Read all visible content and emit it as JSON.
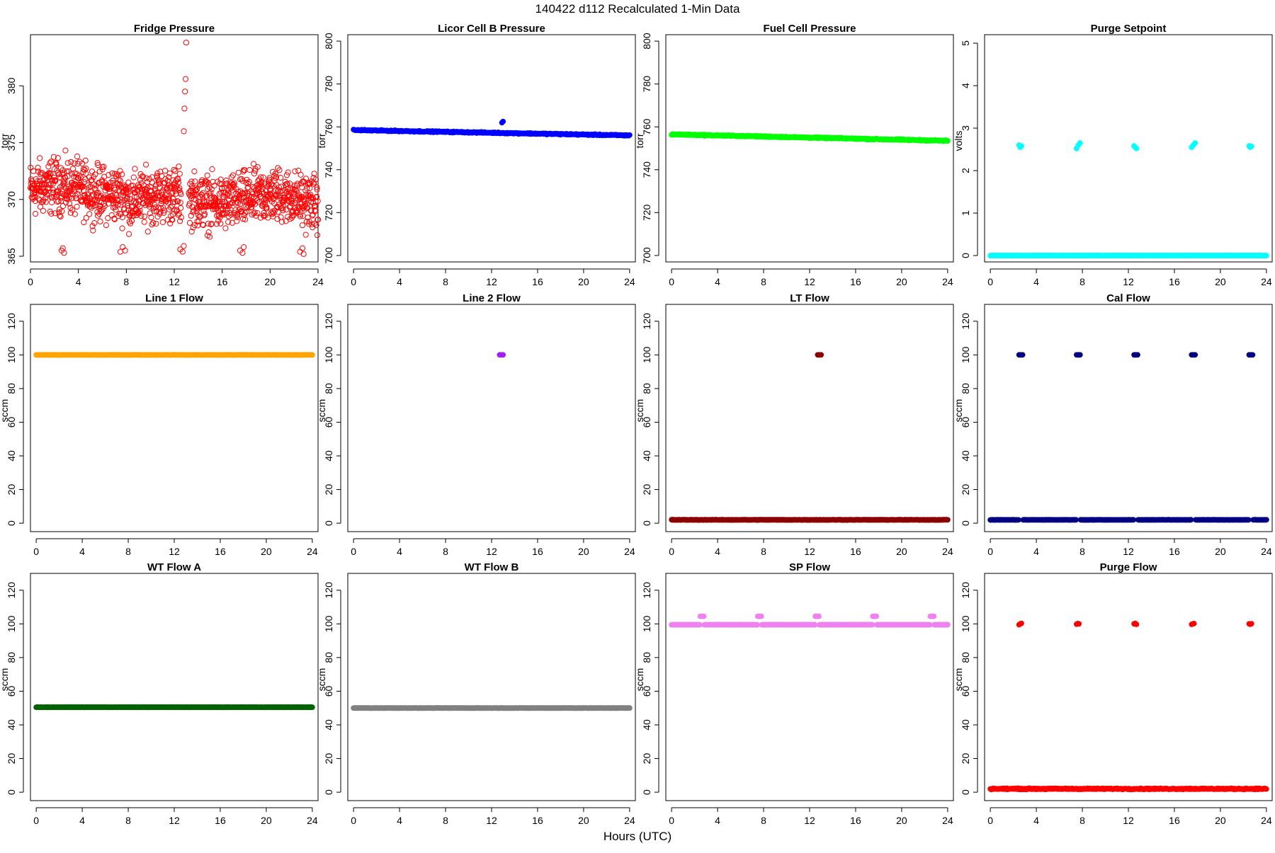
{
  "figure_title": "140422   d112   Recalculated 1-Min Data",
  "x_axis_label": "Hours (UTC)",
  "chart_data": [
    {
      "type": "scatter",
      "title": "Fridge Pressure",
      "ylabel": "torr",
      "xlim": [
        0,
        24
      ],
      "ylim": [
        364.5,
        384.5
      ],
      "xticks": [
        0,
        4,
        8,
        12,
        16,
        20,
        24
      ],
      "yticks": [
        365,
        370,
        375,
        380
      ],
      "color": "#ff0000",
      "marker": "open",
      "base": {
        "from": 0,
        "to": 24,
        "center": 370.8,
        "spread": 1.6,
        "gap": [
          12.6,
          13.2
        ]
      },
      "extra": [
        {
          "x": [
            2.6,
            2.7,
            2.8
          ],
          "y": [
            365.5,
            365.7,
            365.3
          ]
        },
        {
          "x": [
            7.5,
            7.7,
            7.9
          ],
          "y": [
            365.4,
            365.8,
            365.5
          ]
        },
        {
          "x": [
            12.5,
            12.7,
            12.8
          ],
          "y": [
            365.6,
            365.4,
            365.9
          ]
        },
        {
          "x": [
            17.5,
            17.7,
            17.8
          ],
          "y": [
            365.5,
            365.3,
            365.8
          ]
        },
        {
          "x": [
            22.5,
            22.7,
            22.8
          ],
          "y": [
            365.4,
            365.7,
            365.2
          ]
        },
        {
          "x": [
            12.8,
            12.85,
            12.9,
            12.95,
            13.0
          ],
          "y": [
            376,
            378,
            379.5,
            380.6,
            383.8
          ]
        }
      ]
    },
    {
      "type": "scatter",
      "title": "Licor Cell B Pressure",
      "ylabel": "torr",
      "xlim": [
        -0.5,
        24.5
      ],
      "ylim": [
        697,
        803
      ],
      "xticks": [
        0,
        4,
        8,
        12,
        16,
        20,
        24
      ],
      "yticks": [
        700,
        720,
        740,
        760,
        780,
        800
      ],
      "color": "#0000ff",
      "marker": "filled",
      "base": {
        "from": 0,
        "to": 24,
        "start": 758.5,
        "end": 756,
        "spread": 0.4
      },
      "extra": [
        {
          "x": [
            12.9,
            13.0
          ],
          "y": [
            762,
            762.5
          ]
        }
      ]
    },
    {
      "type": "scatter",
      "title": "Fuel Cell Pressure",
      "ylabel": "torr",
      "xlim": [
        -0.5,
        24.5
      ],
      "ylim": [
        697,
        803
      ],
      "xticks": [
        0,
        4,
        8,
        12,
        16,
        20,
        24
      ],
      "yticks": [
        700,
        720,
        740,
        760,
        780,
        800
      ],
      "color": "#00ff00",
      "marker": "filled",
      "base": {
        "from": 0,
        "to": 24,
        "start": 756.5,
        "end": 753.5,
        "spread": 0.4
      },
      "extra": [
        {
          "x": [
            12.9,
            13.0
          ],
          "y": [
            754.8,
            755
          ]
        }
      ]
    },
    {
      "type": "scatter",
      "title": "Purge Setpoint",
      "ylabel": "volts",
      "xlim": [
        -0.5,
        24.5
      ],
      "ylim": [
        -0.15,
        5.2
      ],
      "xticks": [
        0,
        4,
        8,
        12,
        16,
        20,
        24
      ],
      "yticks": [
        0,
        1,
        2,
        3,
        4,
        5
      ],
      "color": "#00ffff",
      "marker": "filled",
      "base": {
        "from": 0,
        "to": 24,
        "center": 0,
        "spread": 0.005
      },
      "extra": [
        {
          "x": [
            2.5,
            2.6,
            2.7
          ],
          "y": [
            2.6,
            2.55,
            2.58
          ]
        },
        {
          "x": [
            7.5,
            7.65,
            7.8
          ],
          "y": [
            2.52,
            2.6,
            2.65
          ]
        },
        {
          "x": [
            12.5,
            12.6,
            12.7
          ],
          "y": [
            2.58,
            2.55,
            2.52
          ]
        },
        {
          "x": [
            17.5,
            17.65,
            17.8
          ],
          "y": [
            2.55,
            2.6,
            2.65
          ]
        },
        {
          "x": [
            22.5,
            22.6,
            22.7
          ],
          "y": [
            2.58,
            2.55,
            2.57
          ]
        }
      ]
    },
    {
      "type": "scatter",
      "title": "Line 1 Flow",
      "ylabel": "sccm",
      "xlim": [
        -0.5,
        24.5
      ],
      "ylim": [
        -5,
        130
      ],
      "xticks": [
        0,
        4,
        8,
        12,
        16,
        20,
        24
      ],
      "yticks": [
        0,
        20,
        40,
        60,
        80,
        100,
        120
      ],
      "color": "#ffa500",
      "marker": "filled",
      "base": {
        "from": 0,
        "to": 24,
        "center": 100,
        "spread": 0.1
      },
      "extra": []
    },
    {
      "type": "scatter",
      "title": "Line 2 Flow",
      "ylabel": "sccm",
      "xlim": [
        -0.5,
        24.5
      ],
      "ylim": [
        -5,
        130
      ],
      "xticks": [
        0,
        4,
        8,
        12,
        16,
        20,
        24
      ],
      "yticks": [
        0,
        20,
        40,
        60,
        80,
        100,
        120
      ],
      "color": "#a020f0",
      "marker": "filled",
      "base": null,
      "extra": [
        {
          "x": [
            12.7,
            12.8,
            12.9,
            13.0
          ],
          "y": [
            100,
            100,
            100,
            100
          ]
        }
      ]
    },
    {
      "type": "scatter",
      "title": "LT Flow",
      "ylabel": "sccm",
      "xlim": [
        -0.5,
        24.5
      ],
      "ylim": [
        -5,
        130
      ],
      "xticks": [
        0,
        4,
        8,
        12,
        16,
        20,
        24
      ],
      "yticks": [
        0,
        20,
        40,
        60,
        80,
        100,
        120
      ],
      "color": "#8b0000",
      "marker": "filled",
      "base": {
        "from": 0,
        "to": 24,
        "center": 2,
        "spread": 0.2
      },
      "extra": [
        {
          "x": [
            12.7,
            12.8,
            12.9,
            13.0
          ],
          "y": [
            100,
            100,
            100,
            100
          ]
        }
      ]
    },
    {
      "type": "scatter",
      "title": "Cal Flow",
      "ylabel": "sccm",
      "xlim": [
        -0.5,
        24.5
      ],
      "ylim": [
        -5,
        130
      ],
      "xticks": [
        0,
        4,
        8,
        12,
        16,
        20,
        24
      ],
      "yticks": [
        0,
        20,
        40,
        60,
        80,
        100,
        120
      ],
      "color": "#000080",
      "marker": "filled",
      "base": {
        "from": 0,
        "to": 24,
        "center": 2,
        "spread": 0.1,
        "gaps": [
          [
            2.5,
            2.8
          ],
          [
            7.5,
            7.8
          ],
          [
            12.5,
            12.8
          ],
          [
            17.5,
            17.8
          ],
          [
            22.5,
            22.8
          ]
        ]
      },
      "extra": [
        {
          "x": [
            2.5,
            2.6,
            2.7,
            2.8
          ],
          "y": [
            100,
            100,
            100,
            100
          ]
        },
        {
          "x": [
            7.5,
            7.6,
            7.7,
            7.8
          ],
          "y": [
            100,
            100,
            100,
            100
          ]
        },
        {
          "x": [
            12.5,
            12.6,
            12.7,
            12.8
          ],
          "y": [
            100,
            100,
            100,
            100
          ]
        },
        {
          "x": [
            17.5,
            17.6,
            17.7,
            17.8
          ],
          "y": [
            100,
            100,
            100,
            100
          ]
        },
        {
          "x": [
            22.5,
            22.6,
            22.7,
            22.8
          ],
          "y": [
            100,
            100,
            100,
            100
          ]
        }
      ]
    },
    {
      "type": "scatter",
      "title": "WT Flow A",
      "ylabel": "sccm",
      "xlim": [
        -0.5,
        24.5
      ],
      "ylim": [
        -5,
        130
      ],
      "xticks": [
        0,
        4,
        8,
        12,
        16,
        20,
        24
      ],
      "yticks": [
        0,
        20,
        40,
        60,
        80,
        100,
        120
      ],
      "color": "#006400",
      "marker": "filled",
      "base": {
        "from": 0,
        "to": 24,
        "center": 50.5,
        "spread": 0.1
      },
      "extra": []
    },
    {
      "type": "scatter",
      "title": "WT Flow B",
      "ylabel": "sccm",
      "xlim": [
        -0.5,
        24.5
      ],
      "ylim": [
        -5,
        130
      ],
      "xticks": [
        0,
        4,
        8,
        12,
        16,
        20,
        24
      ],
      "yticks": [
        0,
        20,
        40,
        60,
        80,
        100,
        120
      ],
      "color": "#808080",
      "marker": "filled",
      "base": {
        "from": 0,
        "to": 24,
        "center": 50,
        "spread": 0.1
      },
      "extra": []
    },
    {
      "type": "scatter",
      "title": "SP Flow",
      "ylabel": "sccm",
      "xlim": [
        -0.5,
        24.5
      ],
      "ylim": [
        -5,
        130
      ],
      "xticks": [
        0,
        4,
        8,
        12,
        16,
        20,
        24
      ],
      "yticks": [
        0,
        20,
        40,
        60,
        80,
        100,
        120
      ],
      "color": "#ee82ee",
      "marker": "filled",
      "base": {
        "from": 0,
        "to": 24,
        "center": 99.5,
        "spread": 0.1,
        "gaps": [
          [
            2.5,
            2.8
          ],
          [
            7.5,
            7.8
          ],
          [
            12.5,
            12.8
          ],
          [
            17.5,
            17.8
          ],
          [
            22.5,
            22.8
          ]
        ]
      },
      "extra": [
        {
          "x": [
            2.5,
            2.6,
            2.7,
            2.8
          ],
          "y": [
            104.5,
            104.5,
            104.5,
            104.5
          ]
        },
        {
          "x": [
            7.5,
            7.6,
            7.7,
            7.8
          ],
          "y": [
            104.5,
            104.5,
            104.5,
            104.5
          ]
        },
        {
          "x": [
            12.5,
            12.6,
            12.7,
            12.8
          ],
          "y": [
            104.5,
            104.5,
            104.5,
            104.5
          ]
        },
        {
          "x": [
            17.5,
            17.6,
            17.7,
            17.8
          ],
          "y": [
            104.5,
            104.5,
            104.5,
            104.5
          ]
        },
        {
          "x": [
            22.5,
            22.6,
            22.7,
            22.8
          ],
          "y": [
            104.5,
            104.5,
            104.5,
            104.5
          ]
        }
      ]
    },
    {
      "type": "scatter",
      "title": "Purge Flow",
      "ylabel": "sccm",
      "xlim": [
        -0.5,
        24.5
      ],
      "ylim": [
        -5,
        130
      ],
      "xticks": [
        0,
        4,
        8,
        12,
        16,
        20,
        24
      ],
      "yticks": [
        0,
        20,
        40,
        60,
        80,
        100,
        120
      ],
      "color": "#ff0000",
      "marker": "filled",
      "base": {
        "from": 0,
        "to": 24,
        "center": 2,
        "spread": 0.5
      },
      "extra": [
        {
          "x": [
            2.5,
            2.6,
            2.7
          ],
          "y": [
            99.5,
            100,
            100.3
          ]
        },
        {
          "x": [
            7.5,
            7.6,
            7.7
          ],
          "y": [
            99.8,
            100.2,
            100
          ]
        },
        {
          "x": [
            12.5,
            12.6,
            12.7
          ],
          "y": [
            100,
            100.3,
            99.7
          ]
        },
        {
          "x": [
            17.5,
            17.6,
            17.7
          ],
          "y": [
            99.7,
            100,
            100.2
          ]
        },
        {
          "x": [
            22.5,
            22.6,
            22.7
          ],
          "y": [
            100,
            99.8,
            100.1
          ]
        }
      ]
    }
  ]
}
